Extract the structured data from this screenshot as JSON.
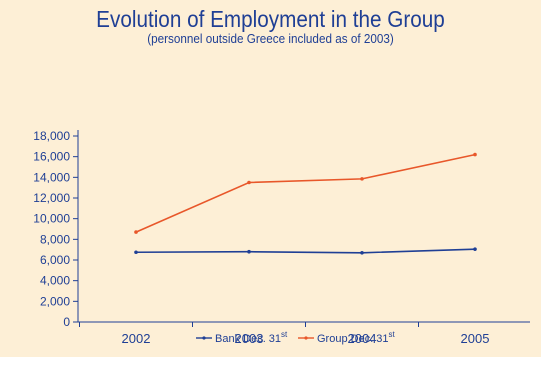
{
  "chart_data": {
    "type": "line",
    "title": "Evolution of Employment in the Group",
    "subtitle": "(personnel outside Greece included as of 2003)",
    "categories": [
      "2002",
      "2003",
      "2004",
      "2005"
    ],
    "y_ticks": [
      "0",
      "2,000",
      "4,000",
      "6,000",
      "8,000",
      "10,000",
      "12,000",
      "14,000",
      "16,000",
      "18,000"
    ],
    "ylim": [
      0,
      18000
    ],
    "grid": false,
    "legend_position": "bottom",
    "series": [
      {
        "name": "Bank",
        "legend_suffix": "Dec. 31",
        "legend_sup": "st",
        "color": "#1f3f95",
        "values": [
          6750,
          6800,
          6700,
          7050
        ]
      },
      {
        "name": "Group",
        "legend_suffix": "Dec. 31",
        "legend_sup": "st",
        "color": "#e8572a",
        "values": [
          8700,
          13500,
          13850,
          16200
        ]
      }
    ],
    "colors": {
      "background": "#fdefd6",
      "axis": "#1f3f95",
      "text": "#1f3f95"
    }
  }
}
